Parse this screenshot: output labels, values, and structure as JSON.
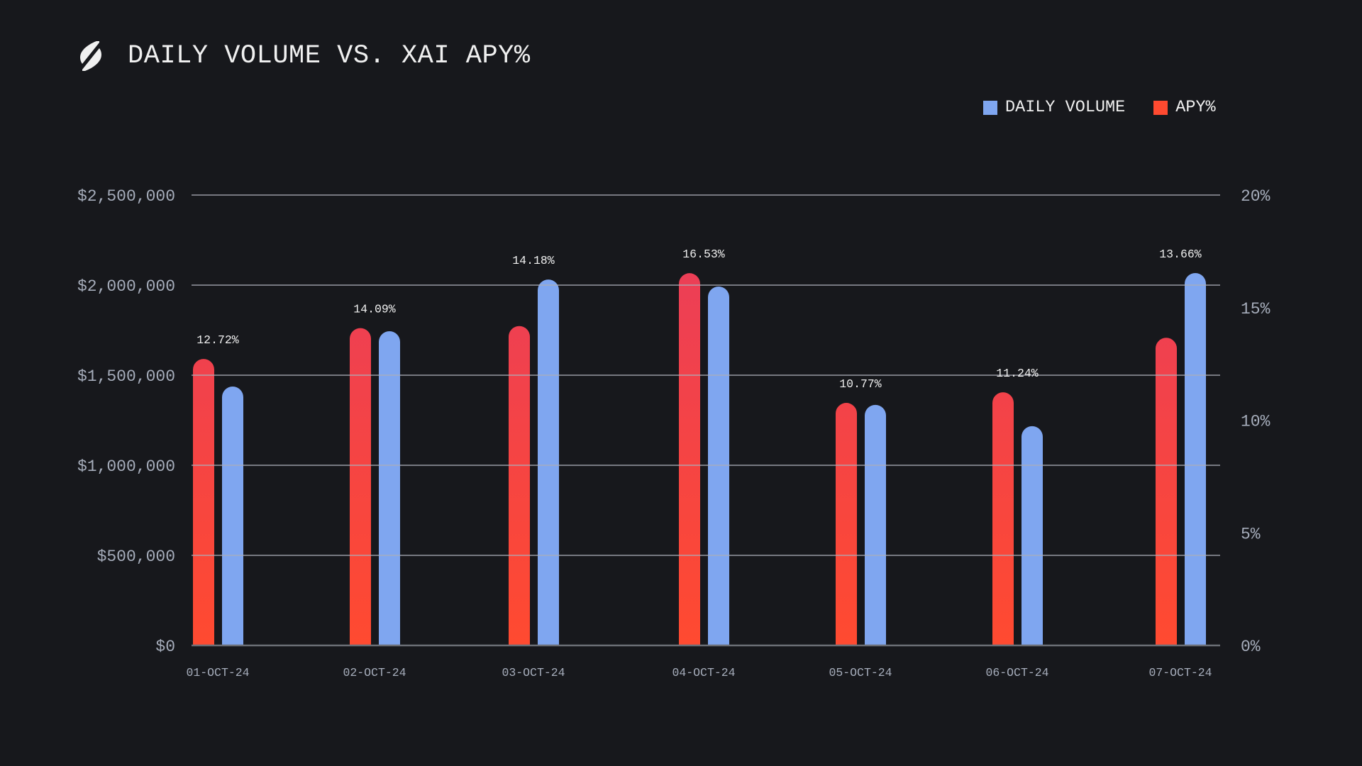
{
  "header": {
    "logo_icon": "brand-slash-s-icon",
    "title": "DAILY VOLUME VS. XAI APY%"
  },
  "legend": {
    "items": [
      {
        "label": "DAILY VOLUME",
        "color": "#7fa6f0"
      },
      {
        "label": "APY%",
        "color": "#ff4a30"
      }
    ]
  },
  "chart_data": {
    "type": "bar",
    "title": "DAILY VOLUME VS. XAI APY%",
    "xlabel": "",
    "ylabel": "",
    "ylabel_right": "",
    "categories": [
      "01-OCT-24",
      "02-OCT-24",
      "03-OCT-24",
      "04-OCT-24",
      "05-OCT-24",
      "06-OCT-24",
      "07-OCT-24"
    ],
    "series": [
      {
        "name": "APY%",
        "axis": "right",
        "color_top": "#e83c5e",
        "color_bottom": "#ff4a30",
        "values": [
          12.72,
          14.09,
          14.18,
          16.53,
          10.77,
          11.24,
          13.66
        ],
        "labels": [
          "12.72%",
          "14.09%",
          "14.18%",
          "16.53%",
          "10.77%",
          "11.24%",
          "13.66%"
        ]
      },
      {
        "name": "DAILY VOLUME",
        "axis": "left",
        "color": "#7fa6f0",
        "values": [
          1437000,
          1744000,
          2031000,
          1992000,
          1335000,
          1217000,
          2067000
        ]
      }
    ],
    "ylim": [
      0,
      2500000
    ],
    "ylim_right": [
      0,
      20
    ],
    "yticks_left": [
      {
        "value": 0,
        "label": "$0"
      },
      {
        "value": 500000,
        "label": "$500,000"
      },
      {
        "value": 1000000,
        "label": "$1,000,000"
      },
      {
        "value": 1500000,
        "label": "$1,500,000"
      },
      {
        "value": 2000000,
        "label": "$2,000,000"
      },
      {
        "value": 2500000,
        "label": "$2,500,000"
      }
    ],
    "yticks_right": [
      {
        "value": 0,
        "label": "0%"
      },
      {
        "value": 5,
        "label": "5%"
      },
      {
        "value": 10,
        "label": "10%"
      },
      {
        "value": 15,
        "label": "15%"
      },
      {
        "value": 20,
        "label": "20%"
      }
    ],
    "grid": true,
    "legend_position": "top-right"
  }
}
